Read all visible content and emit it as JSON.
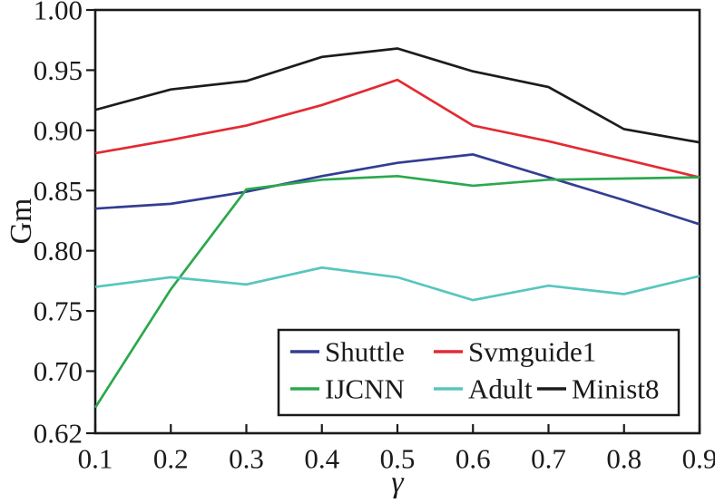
{
  "chart_data": {
    "type": "line",
    "title": "",
    "xlabel": "γ",
    "ylabel": "Gm",
    "x": [
      0.1,
      0.2,
      0.3,
      0.4,
      0.5,
      0.6,
      0.7,
      0.8,
      0.9
    ],
    "x_tick_labels": [
      "0.1",
      "0.2",
      "0.3",
      "0.4",
      "0.5",
      "0.6",
      "0.7",
      "0.8",
      "0.9"
    ],
    "y_ticks": [
      1.0,
      0.95,
      0.9,
      0.85,
      0.8,
      0.75,
      0.7,
      0.62
    ],
    "y_tick_labels": [
      "1.00",
      "0.95",
      "0.90",
      "0.85",
      "0.80",
      "0.75",
      "0.70",
      "0.62"
    ],
    "ylim": [
      0.62,
      1.0
    ],
    "xlim": [
      0.1,
      0.9
    ],
    "grid": false,
    "axis_note": "bottom interval 0.70-0.62 is compressed into one tick gap",
    "legend_position": "inside lower-right, two rows, boxed",
    "series": [
      {
        "name": "Shuttle",
        "color": "#333d94",
        "values": [
          0.835,
          0.839,
          0.849,
          0.862,
          0.873,
          0.88,
          0.861,
          0.842,
          0.822
        ]
      },
      {
        "name": "Svmguide1",
        "color": "#e32a33",
        "values": [
          0.881,
          0.892,
          0.904,
          0.921,
          0.942,
          0.904,
          0.891,
          0.876,
          0.861
        ]
      },
      {
        "name": "IJCNN",
        "color": "#2ca84e",
        "values": [
          0.653,
          0.768,
          0.851,
          0.859,
          0.862,
          0.854,
          0.859,
          0.86,
          0.861
        ]
      },
      {
        "name": "Adult",
        "color": "#58c6be",
        "values": [
          0.77,
          0.778,
          0.772,
          0.786,
          0.778,
          0.759,
          0.771,
          0.764,
          0.779
        ]
      },
      {
        "name": "Minist8",
        "color": "#1c1c1c",
        "values": [
          0.917,
          0.934,
          0.941,
          0.961,
          0.968,
          0.949,
          0.936,
          0.901,
          0.89
        ]
      }
    ],
    "legend_rows": [
      [
        0,
        1
      ],
      [
        2,
        3,
        4
      ]
    ],
    "frame_color": "#1a1a1a",
    "background_color": "#ffffff"
  }
}
